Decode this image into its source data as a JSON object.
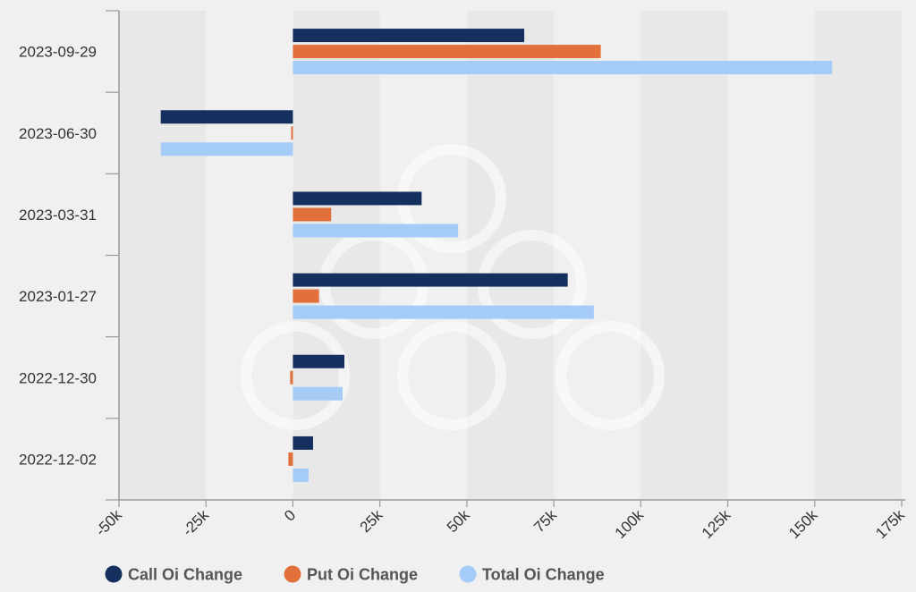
{
  "chart_data": {
    "type": "bar",
    "orientation": "horizontal",
    "categories": [
      "2023-09-29",
      "2023-06-30",
      "2023-03-31",
      "2023-01-27",
      "2022-12-30",
      "2022-12-02"
    ],
    "series": [
      {
        "name": "Call Oi Change",
        "color": "#15305f",
        "values": [
          66500,
          -38000,
          37000,
          79000,
          14800,
          5800
        ]
      },
      {
        "name": "Put Oi Change",
        "color": "#e2703a",
        "values": [
          88500,
          -500,
          11000,
          7500,
          -800,
          -1300
        ]
      },
      {
        "name": "Total Oi Change",
        "color": "#a5cbf7",
        "values": [
          155000,
          -38000,
          47500,
          86500,
          14300,
          4500
        ]
      }
    ],
    "x_ticks": [
      "-50k",
      "-25k",
      "0",
      "25k",
      "50k",
      "75k",
      "100k",
      "125k",
      "150k",
      "175k"
    ],
    "xlim": [
      -50000,
      175000
    ],
    "grid": "alternating vertical bands",
    "legend_position": "bottom-left",
    "title": "",
    "xlabel": "",
    "ylabel": ""
  },
  "colors": {
    "background": "#f0f0f0",
    "band": "#e8e8e8",
    "axis": "#999999"
  }
}
